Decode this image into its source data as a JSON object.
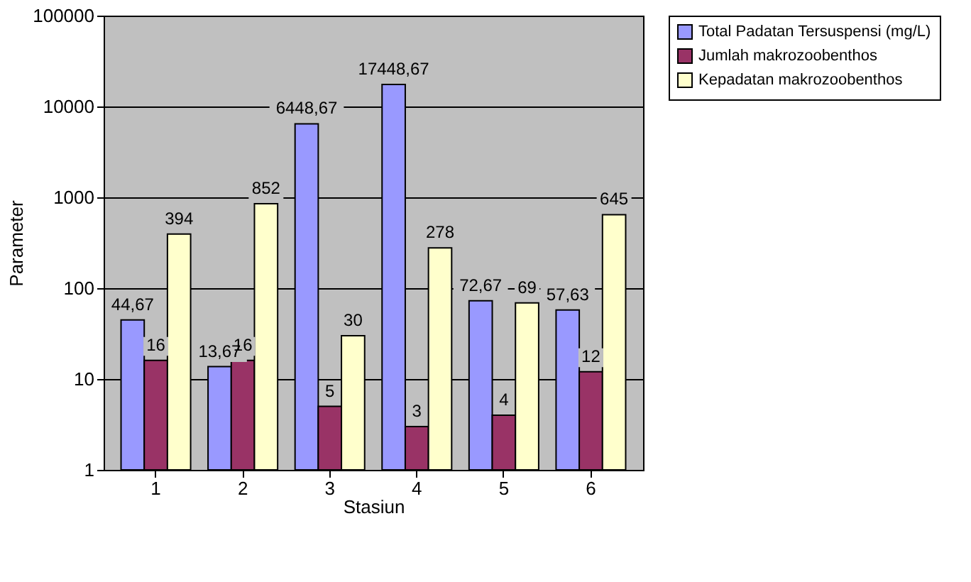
{
  "chart_data": {
    "type": "bar",
    "xlabel": "Stasiun",
    "ylabel": "Parameter",
    "categories": [
      "1",
      "2",
      "3",
      "4",
      "5",
      "6"
    ],
    "series": [
      {
        "name": "Total Padatan Tersuspensi (mg/L)",
        "color": "#9999ff",
        "values": [
          44.67,
          13.67,
          6448.67,
          17448.67,
          72.67,
          57.63
        ],
        "value_labels": [
          "44,67",
          "13,67",
          "6448,67",
          "17448,67",
          "72,67",
          "57,63"
        ]
      },
      {
        "name": "Jumlah makrozoobenthos",
        "color": "#993366",
        "values": [
          16,
          16,
          5,
          3,
          4,
          12
        ],
        "value_labels": [
          "16",
          "16",
          "5",
          "3",
          "4",
          "12"
        ]
      },
      {
        "name": "Kepadatan makrozoobenthos",
        "color": "#ffffcc",
        "values": [
          394,
          852,
          30,
          278,
          69,
          645
        ],
        "value_labels": [
          "394",
          "852",
          "30",
          "278",
          "69",
          "645"
        ]
      }
    ],
    "log": "y",
    "ylim": [
      1,
      100000
    ],
    "yticks": [
      1,
      10,
      100,
      1000,
      10000,
      100000
    ],
    "grid": "y",
    "legend": "right"
  }
}
